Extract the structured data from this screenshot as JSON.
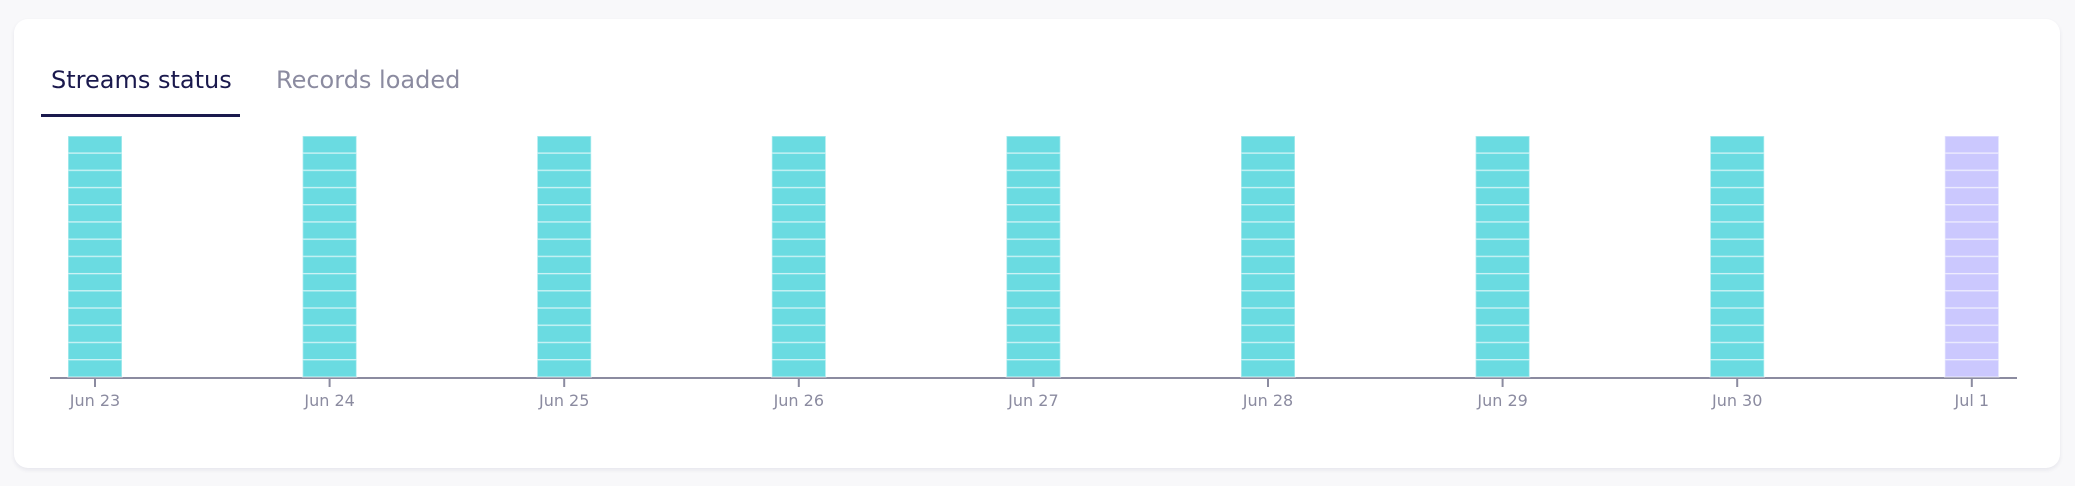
{
  "tabs": [
    {
      "label": "Streams status",
      "active": true
    },
    {
      "label": "Records loaded",
      "active": false
    }
  ],
  "chart_data": {
    "type": "bar",
    "stacked": true,
    "categories": [
      "Jun 23",
      "Jun 24",
      "Jun 25",
      "Jun 26",
      "Jun 27",
      "Jun 28",
      "Jun 29",
      "Jun 30",
      "Jul 1"
    ],
    "segments_per_bar": [
      14,
      14,
      14,
      14,
      14,
      14,
      14,
      14,
      14
    ],
    "bar_colors": [
      "#6adbe1",
      "#6adbe1",
      "#6adbe1",
      "#6adbe1",
      "#6adbe1",
      "#6adbe1",
      "#6adbe1",
      "#6adbe1",
      "#cbc8fe"
    ],
    "axis_color": "#8b8ba0",
    "grid": false,
    "legend": "none"
  }
}
